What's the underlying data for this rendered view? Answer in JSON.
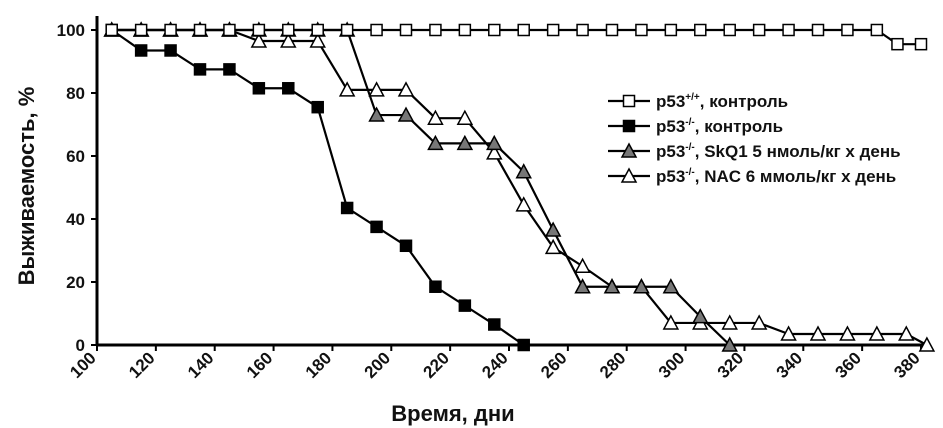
{
  "chart_data": {
    "type": "line",
    "xlabel": "Время, дни",
    "ylabel": "Выживаемость, %",
    "xlim": [
      100,
      380
    ],
    "ylim": [
      0,
      100
    ],
    "xticks": [
      100,
      120,
      140,
      160,
      180,
      200,
      220,
      240,
      260,
      280,
      300,
      320,
      340,
      360,
      380
    ],
    "yticks": [
      0,
      20,
      40,
      60,
      80,
      100
    ],
    "legend_position": "right",
    "grid": false,
    "series": [
      {
        "name": "p53+/+, контроль",
        "name_parts": [
          "p53",
          "+/+",
          ", контроль"
        ],
        "marker": "square-open",
        "x": [
          105,
          115,
          125,
          135,
          145,
          155,
          165,
          175,
          185,
          195,
          205,
          215,
          225,
          235,
          245,
          255,
          265,
          275,
          285,
          295,
          305,
          315,
          325,
          335,
          345,
          355,
          365,
          372,
          380
        ],
        "y": [
          100,
          100,
          100,
          100,
          100,
          100,
          100,
          100,
          100,
          100,
          100,
          100,
          100,
          100,
          100,
          100,
          100,
          100,
          100,
          100,
          100,
          100,
          100,
          100,
          100,
          100,
          100,
          95.5,
          95.5
        ]
      },
      {
        "name": "p53-/-, контроль",
        "name_parts": [
          "p53",
          "-/-",
          ", контроль"
        ],
        "marker": "square-filled",
        "x": [
          105,
          115,
          125,
          135,
          145,
          155,
          165,
          175,
          185,
          195,
          205,
          215,
          225,
          235,
          245
        ],
        "y": [
          100,
          93.5,
          93.5,
          87.5,
          87.5,
          81.5,
          81.5,
          75.5,
          43.5,
          37.5,
          31.5,
          18.5,
          12.5,
          6.5,
          0
        ]
      },
      {
        "name": "p53-/-, SkQ1 5 нмоль/кг х  день",
        "name_parts": [
          "p53",
          "-/-",
          ", SkQ1 5 нмоль/кг х  день"
        ],
        "marker": "triangle-filled",
        "x": [
          105,
          115,
          125,
          135,
          145,
          155,
          165,
          175,
          185,
          195,
          205,
          215,
          225,
          235,
          245,
          255,
          265,
          275,
          285,
          295,
          305,
          315
        ],
        "y": [
          100,
          100,
          100,
          100,
          100,
          100,
          100,
          100,
          100,
          73,
          73,
          64,
          64,
          64,
          55,
          36.5,
          18.5,
          18.5,
          18.5,
          18.5,
          9,
          0
        ]
      },
      {
        "name": "p53-/-, NAC 6 ммоль/кг х день",
        "name_parts": [
          "p53",
          "-/-",
          ", NAC 6 ммоль/кг х день"
        ],
        "marker": "triangle-open",
        "x": [
          105,
          115,
          125,
          135,
          145,
          155,
          165,
          175,
          185,
          195,
          205,
          215,
          225,
          235,
          245,
          255,
          265,
          275,
          285,
          295,
          305,
          315,
          325,
          335,
          345,
          355,
          365,
          375,
          382
        ],
        "y": [
          100,
          100,
          100,
          100,
          100,
          96.5,
          96.5,
          96.5,
          81,
          81,
          81,
          72,
          72,
          61,
          44.5,
          31,
          25,
          18.5,
          18.5,
          7,
          7,
          7,
          7,
          3.5,
          3.5,
          3.5,
          3.5,
          3.5,
          0
        ]
      }
    ]
  }
}
